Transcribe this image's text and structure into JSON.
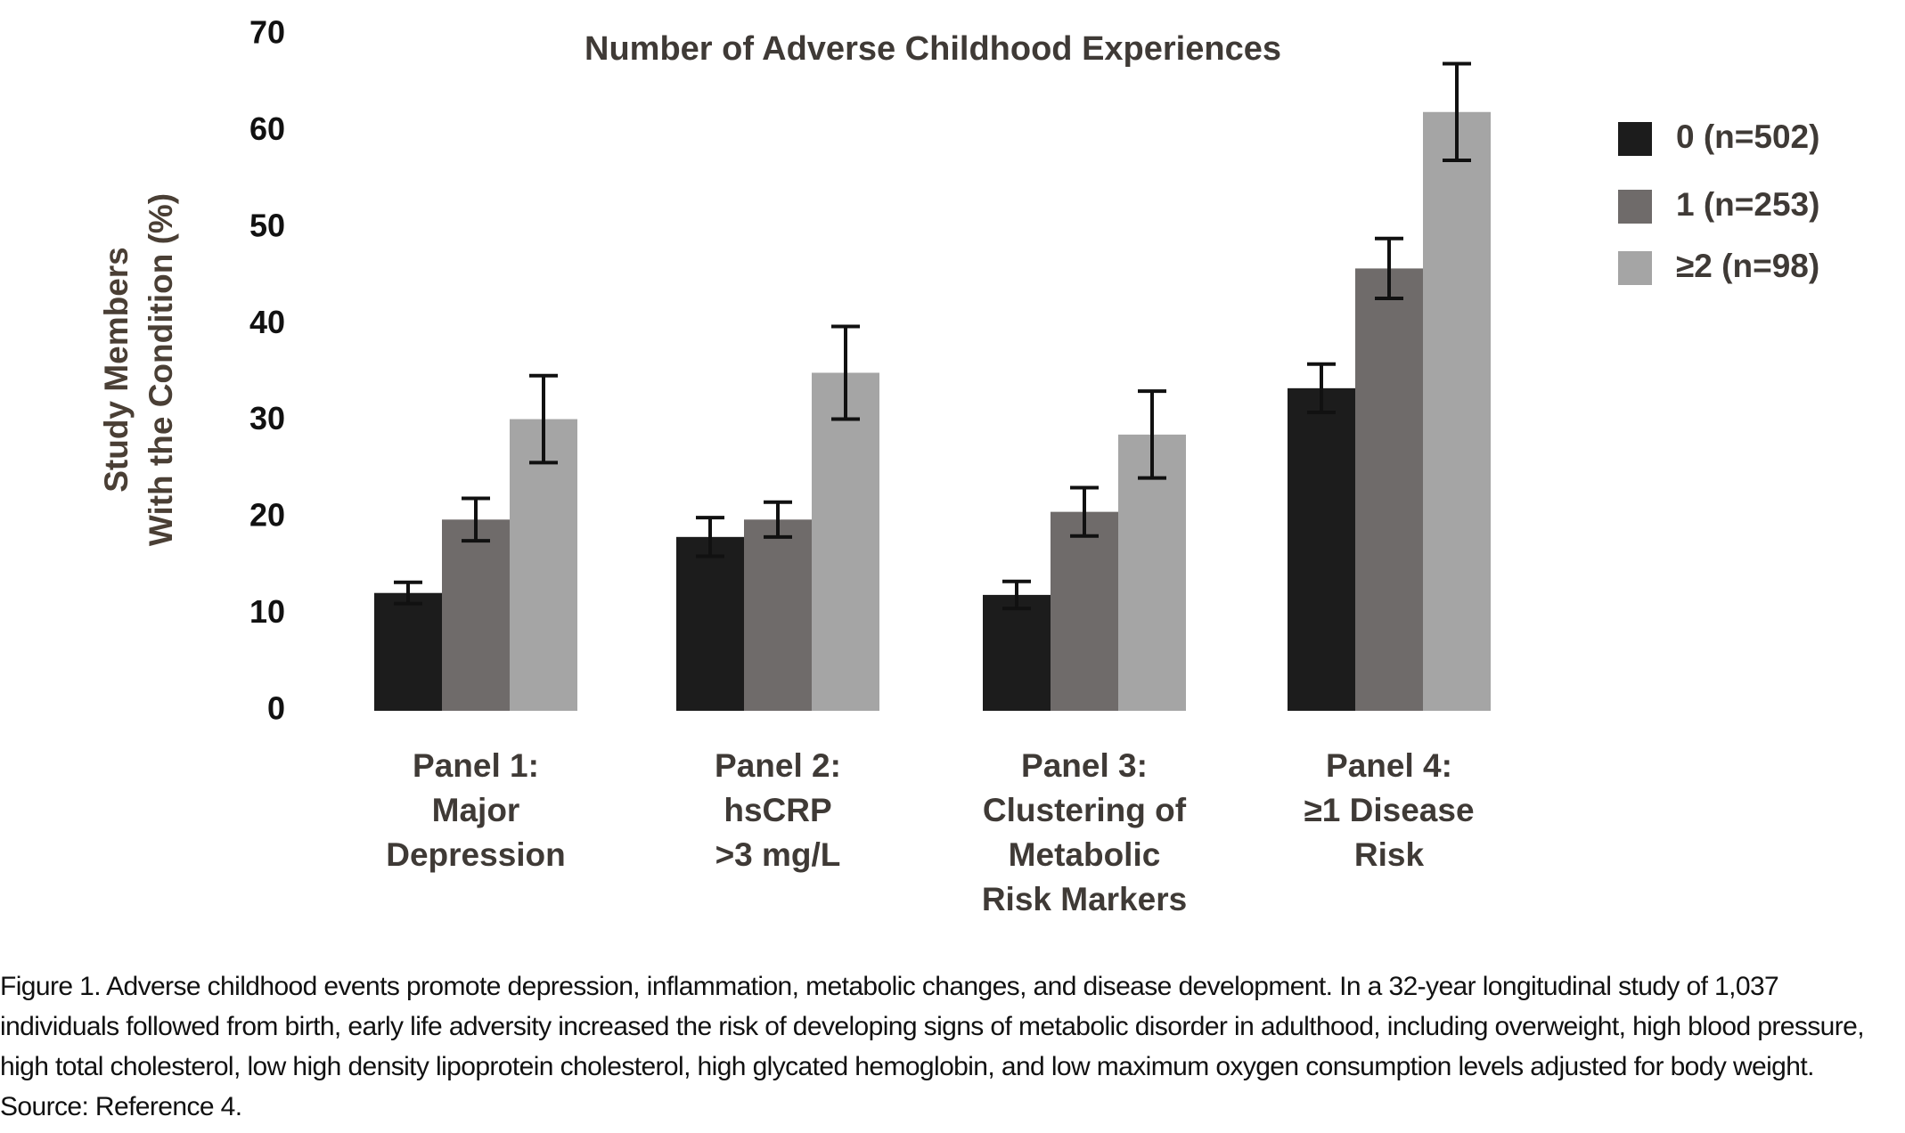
{
  "chart_data": {
    "type": "bar",
    "title": "Number of Adverse Childhood Experiences",
    "ylabel": "Study Members\nWith the Condition (%)",
    "categories": [
      "Panel 1:\nMajor\nDepression",
      "Panel 2:\nhsCRP\n>3 mg/L",
      "Panel 3:\nClustering of\nMetabolic\nRisk Markers",
      "Panel 4:\n≥1 Disease\nRisk"
    ],
    "series": [
      {
        "name": "0 (n=502)",
        "color": "#1c1c1c",
        "values": [
          12.2,
          18,
          12,
          33.4
        ],
        "errors": [
          1.1,
          2,
          1.4,
          2.5
        ]
      },
      {
        "name": "1 (n=253)",
        "color": "#6f6b6a",
        "values": [
          19.8,
          19.8,
          20.6,
          45.8
        ],
        "errors": [
          2.2,
          1.8,
          2.5,
          3.1
        ]
      },
      {
        "name": "≥2 (n=98)",
        "color": "#a5a5a5",
        "values": [
          30.2,
          35,
          28.6,
          62
        ],
        "errors": [
          4.5,
          4.8,
          4.5,
          5
        ]
      }
    ],
    "ylim": [
      0,
      70
    ],
    "yticks": [
      0,
      10,
      20,
      30,
      40,
      50,
      60,
      70
    ],
    "grid": false,
    "legend": "right"
  },
  "caption": "Figure 1. Adverse childhood events promote depression, inflammation, metabolic changes, and disease development. In a 32-year longitudinal study of 1,037 individuals followed from birth, early life adversity increased the risk of developing signs of metabolic disorder in adulthood, including overweight, high blood pressure, high total cholesterol, low high density lipoprotein cholesterol, high glycated hemoglobin, and low maximum oxygen consumption levels adjusted for body weight. Source: Reference 4."
}
